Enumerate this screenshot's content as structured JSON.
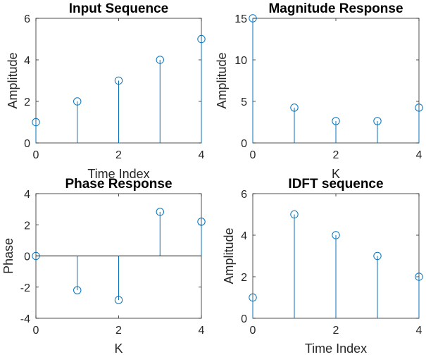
{
  "colors": {
    "stem": "#0072BD",
    "axis": "#262626",
    "background": "#ffffff",
    "baseline": "#000000"
  },
  "chart_data": [
    {
      "type": "stem",
      "title": "Input Sequence",
      "xlabel": "Time Index",
      "ylabel": "Amplitude",
      "xlim": [
        0,
        4
      ],
      "ylim": [
        0,
        6
      ],
      "xticks": [
        0,
        2,
        4
      ],
      "yticks": [
        0,
        2,
        4,
        6
      ],
      "x": [
        0,
        1,
        2,
        3,
        4
      ],
      "values": [
        1,
        2,
        3,
        4,
        5
      ],
      "grid": false
    },
    {
      "type": "stem",
      "title": "Magnitude Response",
      "xlabel": "K",
      "ylabel": "Amplitude",
      "xlim": [
        0,
        4
      ],
      "ylim": [
        0,
        15
      ],
      "xticks": [
        0,
        2,
        4
      ],
      "yticks": [
        0,
        5,
        10,
        15
      ],
      "x": [
        0,
        1,
        2,
        3,
        4
      ],
      "values": [
        15,
        4.25,
        2.63,
        2.63,
        4.25
      ],
      "grid": false
    },
    {
      "type": "stem",
      "title": "Phase Response",
      "xlabel": "K",
      "ylabel": "Phase",
      "xlim": [
        0,
        4
      ],
      "ylim": [
        -4,
        4
      ],
      "xticks": [
        0,
        2,
        4
      ],
      "yticks": [
        -4,
        -2,
        0,
        2,
        4
      ],
      "x": [
        0,
        1,
        2,
        3,
        4
      ],
      "values": [
        0,
        -2.2,
        -2.83,
        2.83,
        2.2
      ],
      "baseline": 0,
      "grid": false
    },
    {
      "type": "stem",
      "title": "IDFT sequence",
      "xlabel": "Time Index",
      "ylabel": "Amplitude",
      "xlim": [
        0,
        4
      ],
      "ylim": [
        0,
        6
      ],
      "xticks": [
        0,
        2,
        4
      ],
      "yticks": [
        0,
        2,
        4,
        6
      ],
      "x": [
        0,
        1,
        2,
        3,
        4
      ],
      "values": [
        1,
        5,
        4,
        3,
        2
      ],
      "grid": false
    }
  ]
}
